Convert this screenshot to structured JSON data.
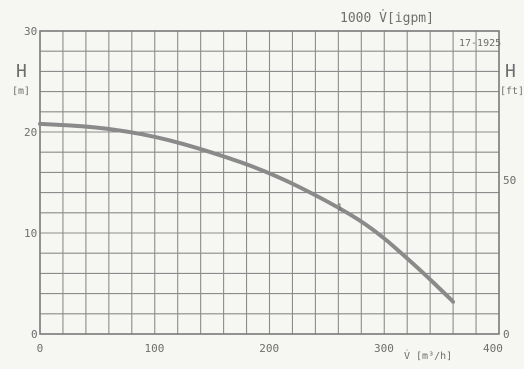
{
  "chart_data": {
    "type": "line",
    "title": "",
    "code": "17-1925",
    "top_axis_label": "1000  V̇[igpm]",
    "xlabel": "V̇ [m³/h]",
    "ylabel_left": "H",
    "ylabel_left_unit": "[m]",
    "ylabel_right": "H",
    "ylabel_right_unit": "[ft]",
    "xlim": [
      0,
      400
    ],
    "ylim": [
      0,
      30
    ],
    "x_ticks": [
      "0",
      "100",
      "200",
      "300",
      "400"
    ],
    "y_ticks_left": [
      "0",
      "10",
      "20",
      "30"
    ],
    "y_ticks_right": [
      "0",
      "50"
    ],
    "grid": true,
    "series": [
      {
        "curve_label": "1",
        "x": [
          0,
          50,
          100,
          150,
          200,
          250,
          290,
          330,
          360
        ],
        "y": [
          20.8,
          20.5,
          19.6,
          18.0,
          16.0,
          13.2,
          10.5,
          6.5,
          3.2
        ]
      }
    ]
  }
}
